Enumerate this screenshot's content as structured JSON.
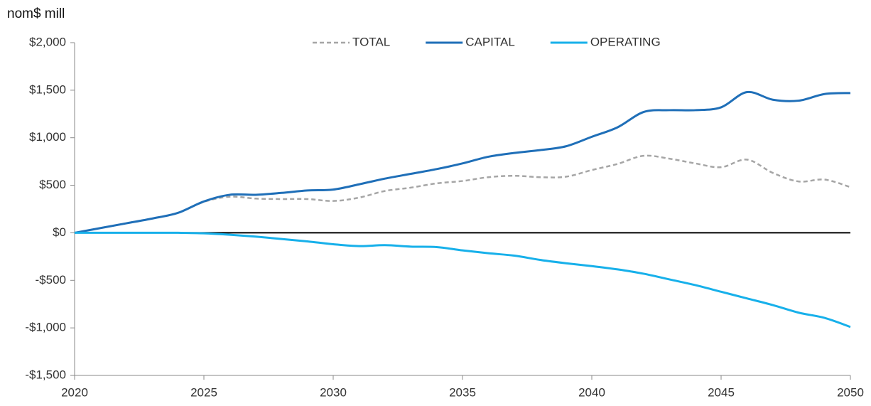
{
  "chart_data": {
    "type": "line",
    "y_label": "nom$ mill",
    "x": [
      2020,
      2021,
      2022,
      2023,
      2024,
      2025,
      2026,
      2027,
      2028,
      2029,
      2030,
      2031,
      2032,
      2033,
      2034,
      2035,
      2036,
      2037,
      2038,
      2039,
      2040,
      2041,
      2042,
      2043,
      2044,
      2045,
      2046,
      2047,
      2048,
      2049,
      2050
    ],
    "series": [
      {
        "name": "TOTAL",
        "color": "#a6a6a6",
        "dashed": true,
        "values": [
          0,
          50,
          100,
          150,
          210,
          325,
          380,
          360,
          355,
          355,
          335,
          370,
          440,
          475,
          520,
          545,
          585,
          600,
          585,
          590,
          660,
          725,
          810,
          780,
          730,
          690,
          770,
          630,
          540,
          560,
          480
        ]
      },
      {
        "name": "CAPITAL",
        "color": "#1f6fb8",
        "dashed": false,
        "values": [
          0,
          50,
          100,
          150,
          210,
          330,
          400,
          400,
          420,
          445,
          455,
          510,
          570,
          620,
          670,
          730,
          800,
          840,
          870,
          910,
          1010,
          1110,
          1270,
          1290,
          1290,
          1320,
          1480,
          1400,
          1390,
          1460,
          1470
        ]
      },
      {
        "name": "OPERATING",
        "color": "#17b0ea",
        "dashed": false,
        "values": [
          0,
          0,
          0,
          0,
          0,
          -5,
          -20,
          -40,
          -65,
          -90,
          -120,
          -140,
          -130,
          -145,
          -150,
          -185,
          -215,
          -240,
          -285,
          -320,
          -350,
          -385,
          -430,
          -490,
          -550,
          -620,
          -690,
          -760,
          -840,
          -895,
          -990
        ]
      }
    ],
    "xlim": [
      2020,
      2050
    ],
    "xticks": [
      2020,
      2025,
      2030,
      2035,
      2040,
      2045,
      2050
    ],
    "ylim": [
      -1500,
      2000
    ],
    "yticks": [
      {
        "value": -1500,
        "label": "-$1,500"
      },
      {
        "value": -1000,
        "label": "-$1,000"
      },
      {
        "value": -500,
        "label": "-$500"
      },
      {
        "value": 0,
        "label": "$0"
      },
      {
        "value": 500,
        "label": "$500"
      },
      {
        "value": 1000,
        "label": "$1,000"
      },
      {
        "value": 1500,
        "label": "$1,500"
      },
      {
        "value": 2000,
        "label": "$2,000"
      }
    ],
    "grid": false,
    "legend": "top"
  }
}
